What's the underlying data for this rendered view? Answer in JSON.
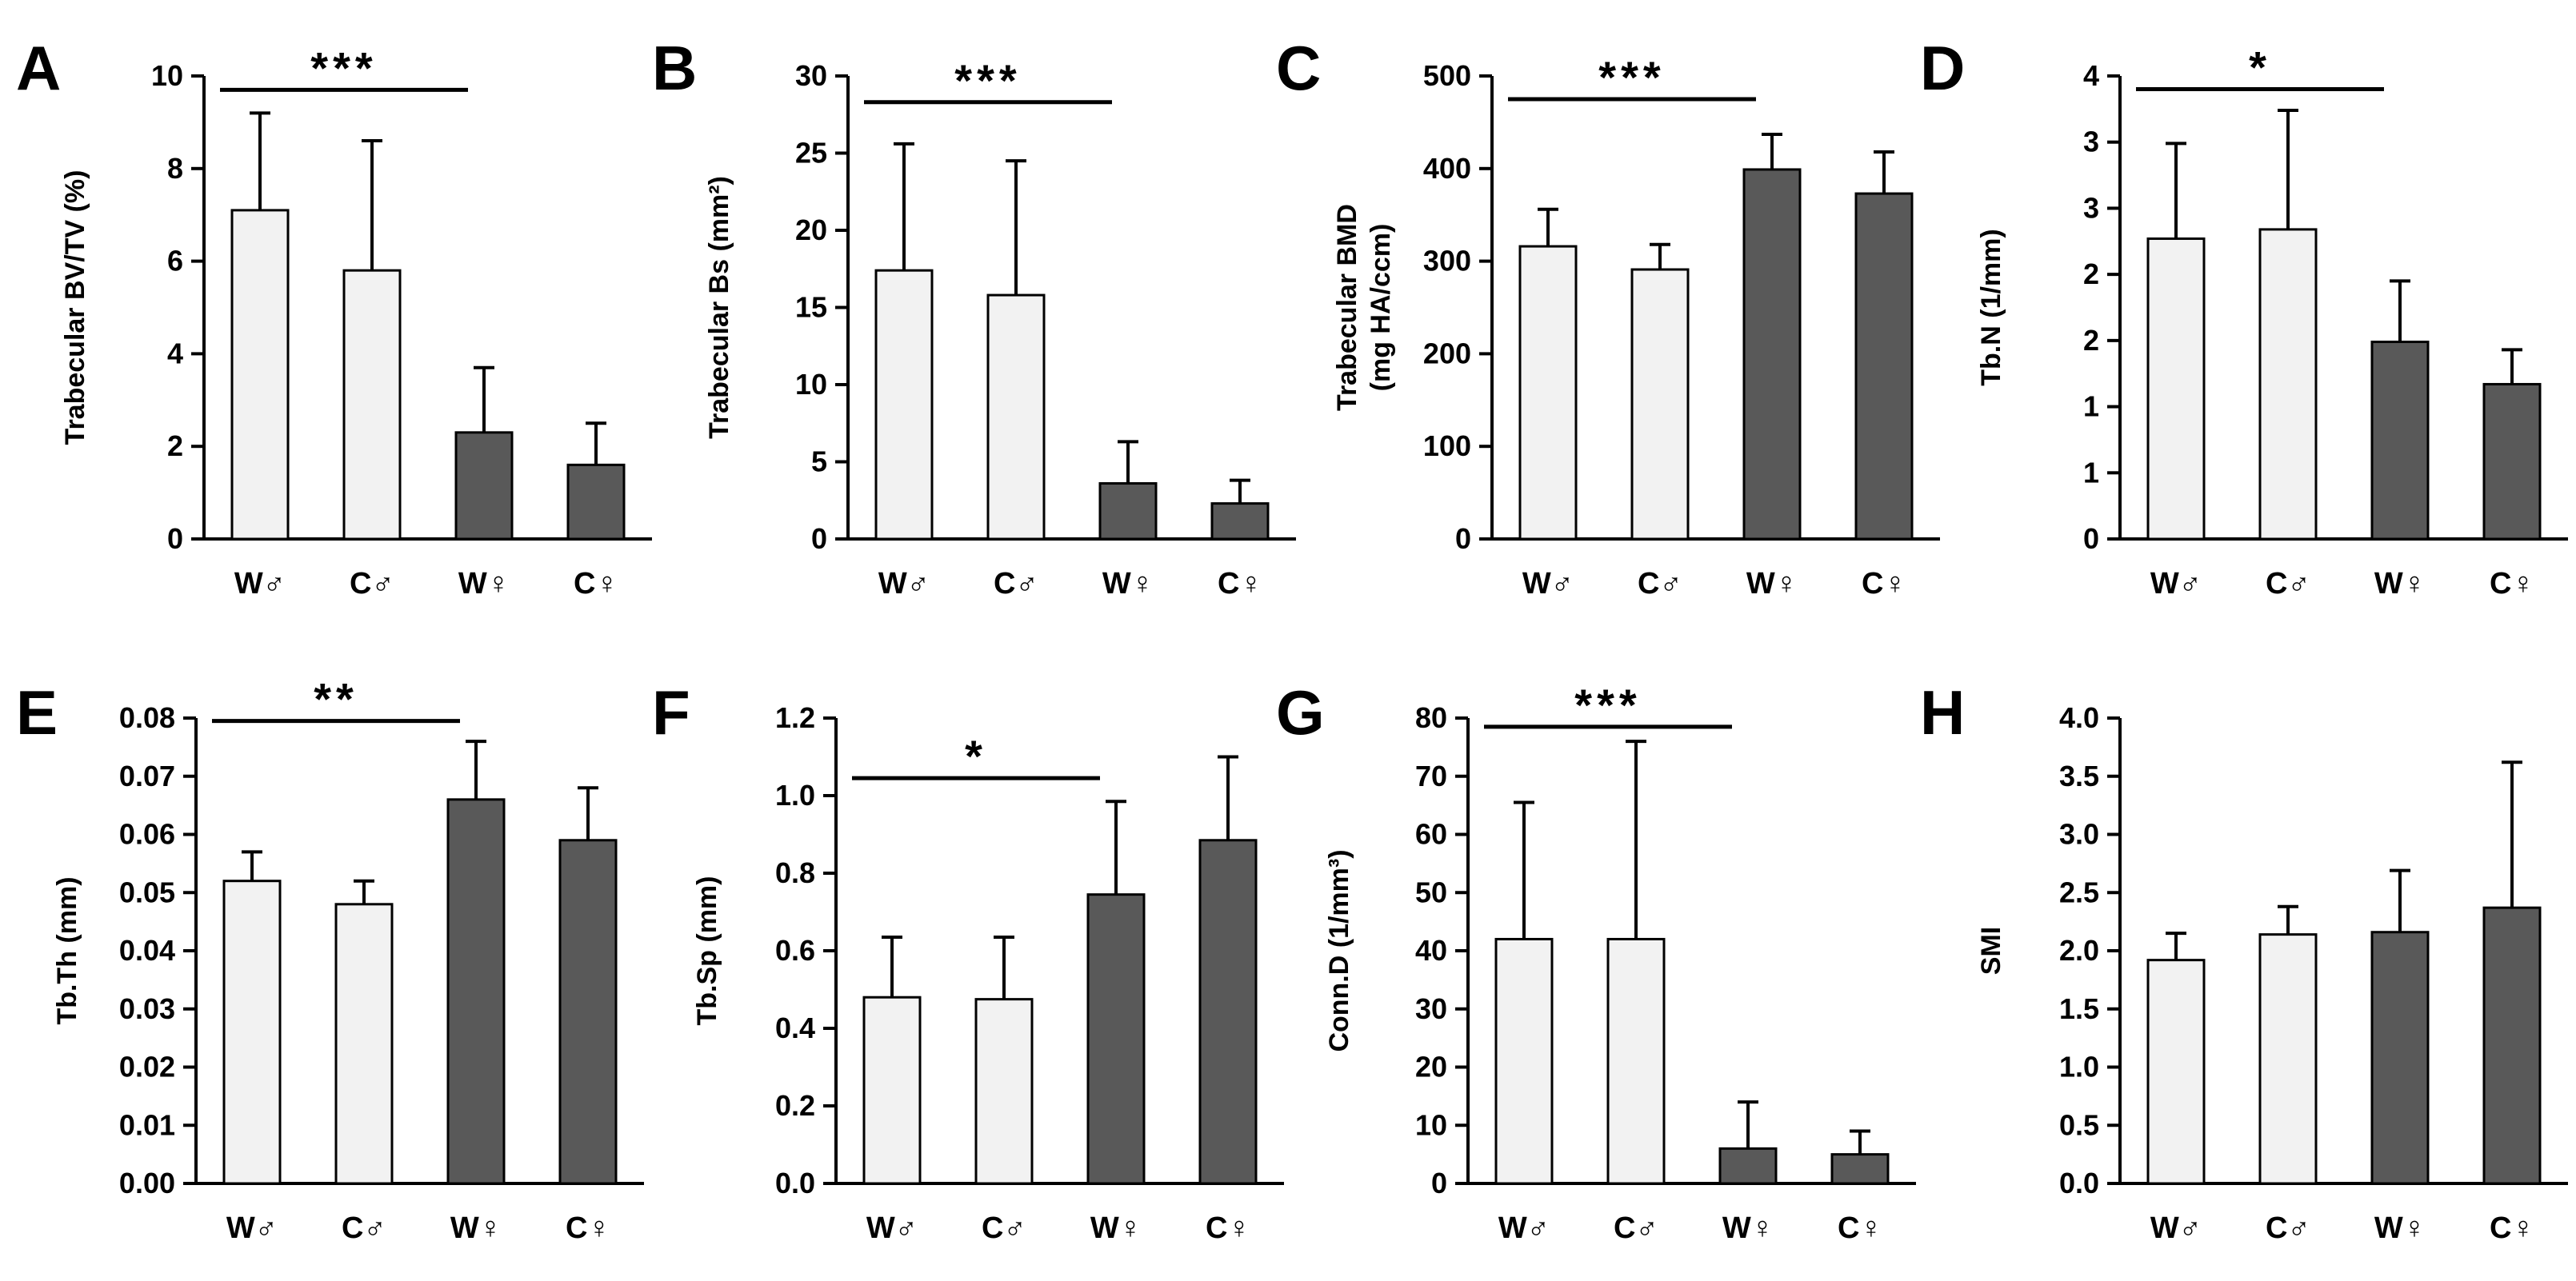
{
  "figure": {
    "light_color": "#f2f2f2",
    "dark_color": "#595959",
    "edge_color": "#000000"
  },
  "chart_data": [
    {
      "panel": "A",
      "type": "bar",
      "ylabel": [
        "Trabecular BV/TV (%)"
      ],
      "categories": [
        "W♂",
        "C♂",
        "W♀",
        "C♀"
      ],
      "values": [
        7.1,
        5.8,
        2.3,
        1.6
      ],
      "errors": [
        2.1,
        2.8,
        1.4,
        0.9
      ],
      "fills": [
        "light",
        "light",
        "dark",
        "dark"
      ],
      "ylim": [
        0,
        10
      ],
      "ticks": [
        0,
        2,
        4,
        6,
        8,
        10
      ],
      "tick_labels": [
        "0",
        "2",
        "4",
        "6",
        "8",
        "10"
      ],
      "significance": {
        "from": 0,
        "to": 2,
        "label": "***",
        "y": 9.7
      }
    },
    {
      "panel": "B",
      "type": "bar",
      "ylabel": [
        "Trabecular Bs (mm²)"
      ],
      "categories": [
        "W♂",
        "C♂",
        "W♀",
        "C♀"
      ],
      "values": [
        17.4,
        15.8,
        3.6,
        2.3
      ],
      "errors": [
        8.2,
        8.7,
        2.7,
        1.5
      ],
      "fills": [
        "light",
        "light",
        "dark",
        "dark"
      ],
      "ylim": [
        0,
        30
      ],
      "ticks": [
        0,
        5,
        10,
        15,
        20,
        25,
        30
      ],
      "tick_labels": [
        "0",
        "5",
        "10",
        "15",
        "20",
        "25",
        "30"
      ],
      "significance": {
        "from": 0,
        "to": 2,
        "label": "***",
        "y": 28.3
      }
    },
    {
      "panel": "C",
      "type": "bar",
      "ylabel": [
        "Trabecular BMD",
        "(mg HA/ccm)"
      ],
      "categories": [
        "W♂",
        "C♂",
        "W♀",
        "C♀"
      ],
      "values": [
        316,
        291,
        399,
        373
      ],
      "errors": [
        40,
        27,
        38,
        45
      ],
      "fills": [
        "light",
        "light",
        "dark",
        "dark"
      ],
      "ylim": [
        0,
        500
      ],
      "ticks": [
        0,
        100,
        200,
        300,
        400,
        500
      ],
      "tick_labels": [
        "0",
        "100",
        "200",
        "300",
        "400",
        "500"
      ],
      "significance": {
        "from": 0,
        "to": 2,
        "label": "***",
        "y": 475
      }
    },
    {
      "panel": "D",
      "type": "bar",
      "ylabel": [
        "Tb.N (1/mm)"
      ],
      "categories": [
        "W♂",
        "C♂",
        "W♀",
        "C♀"
      ],
      "values": [
        2.27,
        2.34,
        1.49,
        1.17
      ],
      "errors": [
        0.72,
        0.9,
        0.46,
        0.26
      ],
      "fills": [
        "light",
        "light",
        "dark",
        "dark"
      ],
      "ylim": [
        0,
        3.5
      ],
      "ticks": [
        0,
        0.5,
        1,
        1.5,
        2,
        2.5,
        3,
        3.5
      ],
      "tick_labels": [
        "0",
        "1",
        "1",
        "2",
        "2",
        "3",
        "3",
        "4"
      ],
      "significance": {
        "from": 0,
        "to": 2,
        "label": "*",
        "y": 3.4
      }
    },
    {
      "panel": "E",
      "type": "bar",
      "ylabel": [
        "Tb.Th (mm)"
      ],
      "categories": [
        "W♂",
        "C♂",
        "W♀",
        "C♀"
      ],
      "values": [
        0.052,
        0.048,
        0.066,
        0.059
      ],
      "errors": [
        0.005,
        0.004,
        0.01,
        0.009
      ],
      "fills": [
        "light",
        "light",
        "dark",
        "dark"
      ],
      "ylim": [
        0,
        0.08
      ],
      "ticks": [
        0,
        0.01,
        0.02,
        0.03,
        0.04,
        0.05,
        0.06,
        0.07,
        0.08
      ],
      "tick_labels": [
        "0.00",
        "0.01",
        "0.02",
        "0.03",
        "0.04",
        "0.05",
        "0.06",
        "0.07",
        "0.08"
      ],
      "significance": {
        "from": 0,
        "to": 2,
        "label": "**",
        "y": 0.0795
      }
    },
    {
      "panel": "F",
      "type": "bar",
      "ylabel": [
        "Tb.Sp (mm)"
      ],
      "categories": [
        "W♂",
        "C♂",
        "W♀",
        "C♀"
      ],
      "values": [
        0.48,
        0.475,
        0.745,
        0.885
      ],
      "errors": [
        0.155,
        0.16,
        0.24,
        0.215
      ],
      "fills": [
        "light",
        "light",
        "dark",
        "dark"
      ],
      "ylim": [
        0,
        1.2
      ],
      "ticks": [
        0,
        0.2,
        0.4,
        0.6,
        0.8,
        1.0,
        1.2
      ],
      "tick_labels": [
        "0.0",
        "0.2",
        "0.4",
        "0.6",
        "0.8",
        "1.0",
        "1.2"
      ],
      "significance": {
        "from": 0,
        "to": 2,
        "label": "*",
        "y": 1.045
      }
    },
    {
      "panel": "G",
      "type": "bar",
      "ylabel": [
        "Conn.D (1/mm³)"
      ],
      "categories": [
        "W♂",
        "C♂",
        "W♀",
        "C♀"
      ],
      "values": [
        42,
        42,
        6,
        5
      ],
      "errors": [
        23.5,
        34,
        8,
        4
      ],
      "fills": [
        "light",
        "light",
        "dark",
        "dark"
      ],
      "ylim": [
        0,
        80
      ],
      "ticks": [
        0,
        10,
        20,
        30,
        40,
        50,
        60,
        70,
        80
      ],
      "tick_labels": [
        "0",
        "10",
        "20",
        "30",
        "40",
        "50",
        "60",
        "70",
        "80"
      ],
      "significance": {
        "from": 0,
        "to": 2,
        "label": "***",
        "y": 78.5
      }
    },
    {
      "panel": "H",
      "type": "bar",
      "ylabel": [
        "SMI"
      ],
      "categories": [
        "W♂",
        "C♂",
        "W♀",
        "C♀"
      ],
      "values": [
        1.92,
        2.14,
        2.16,
        2.37
      ],
      "errors": [
        0.23,
        0.24,
        0.53,
        1.25
      ],
      "fills": [
        "light",
        "light",
        "dark",
        "dark"
      ],
      "ylim": [
        0,
        4.0
      ],
      "ticks": [
        0,
        0.5,
        1.0,
        1.5,
        2.0,
        2.5,
        3.0,
        3.5,
        4.0
      ],
      "tick_labels": [
        "0.0",
        "0.5",
        "1.0",
        "1.5",
        "2.0",
        "2.5",
        "3.0",
        "3.5",
        "4.0"
      ],
      "significance": null
    }
  ]
}
